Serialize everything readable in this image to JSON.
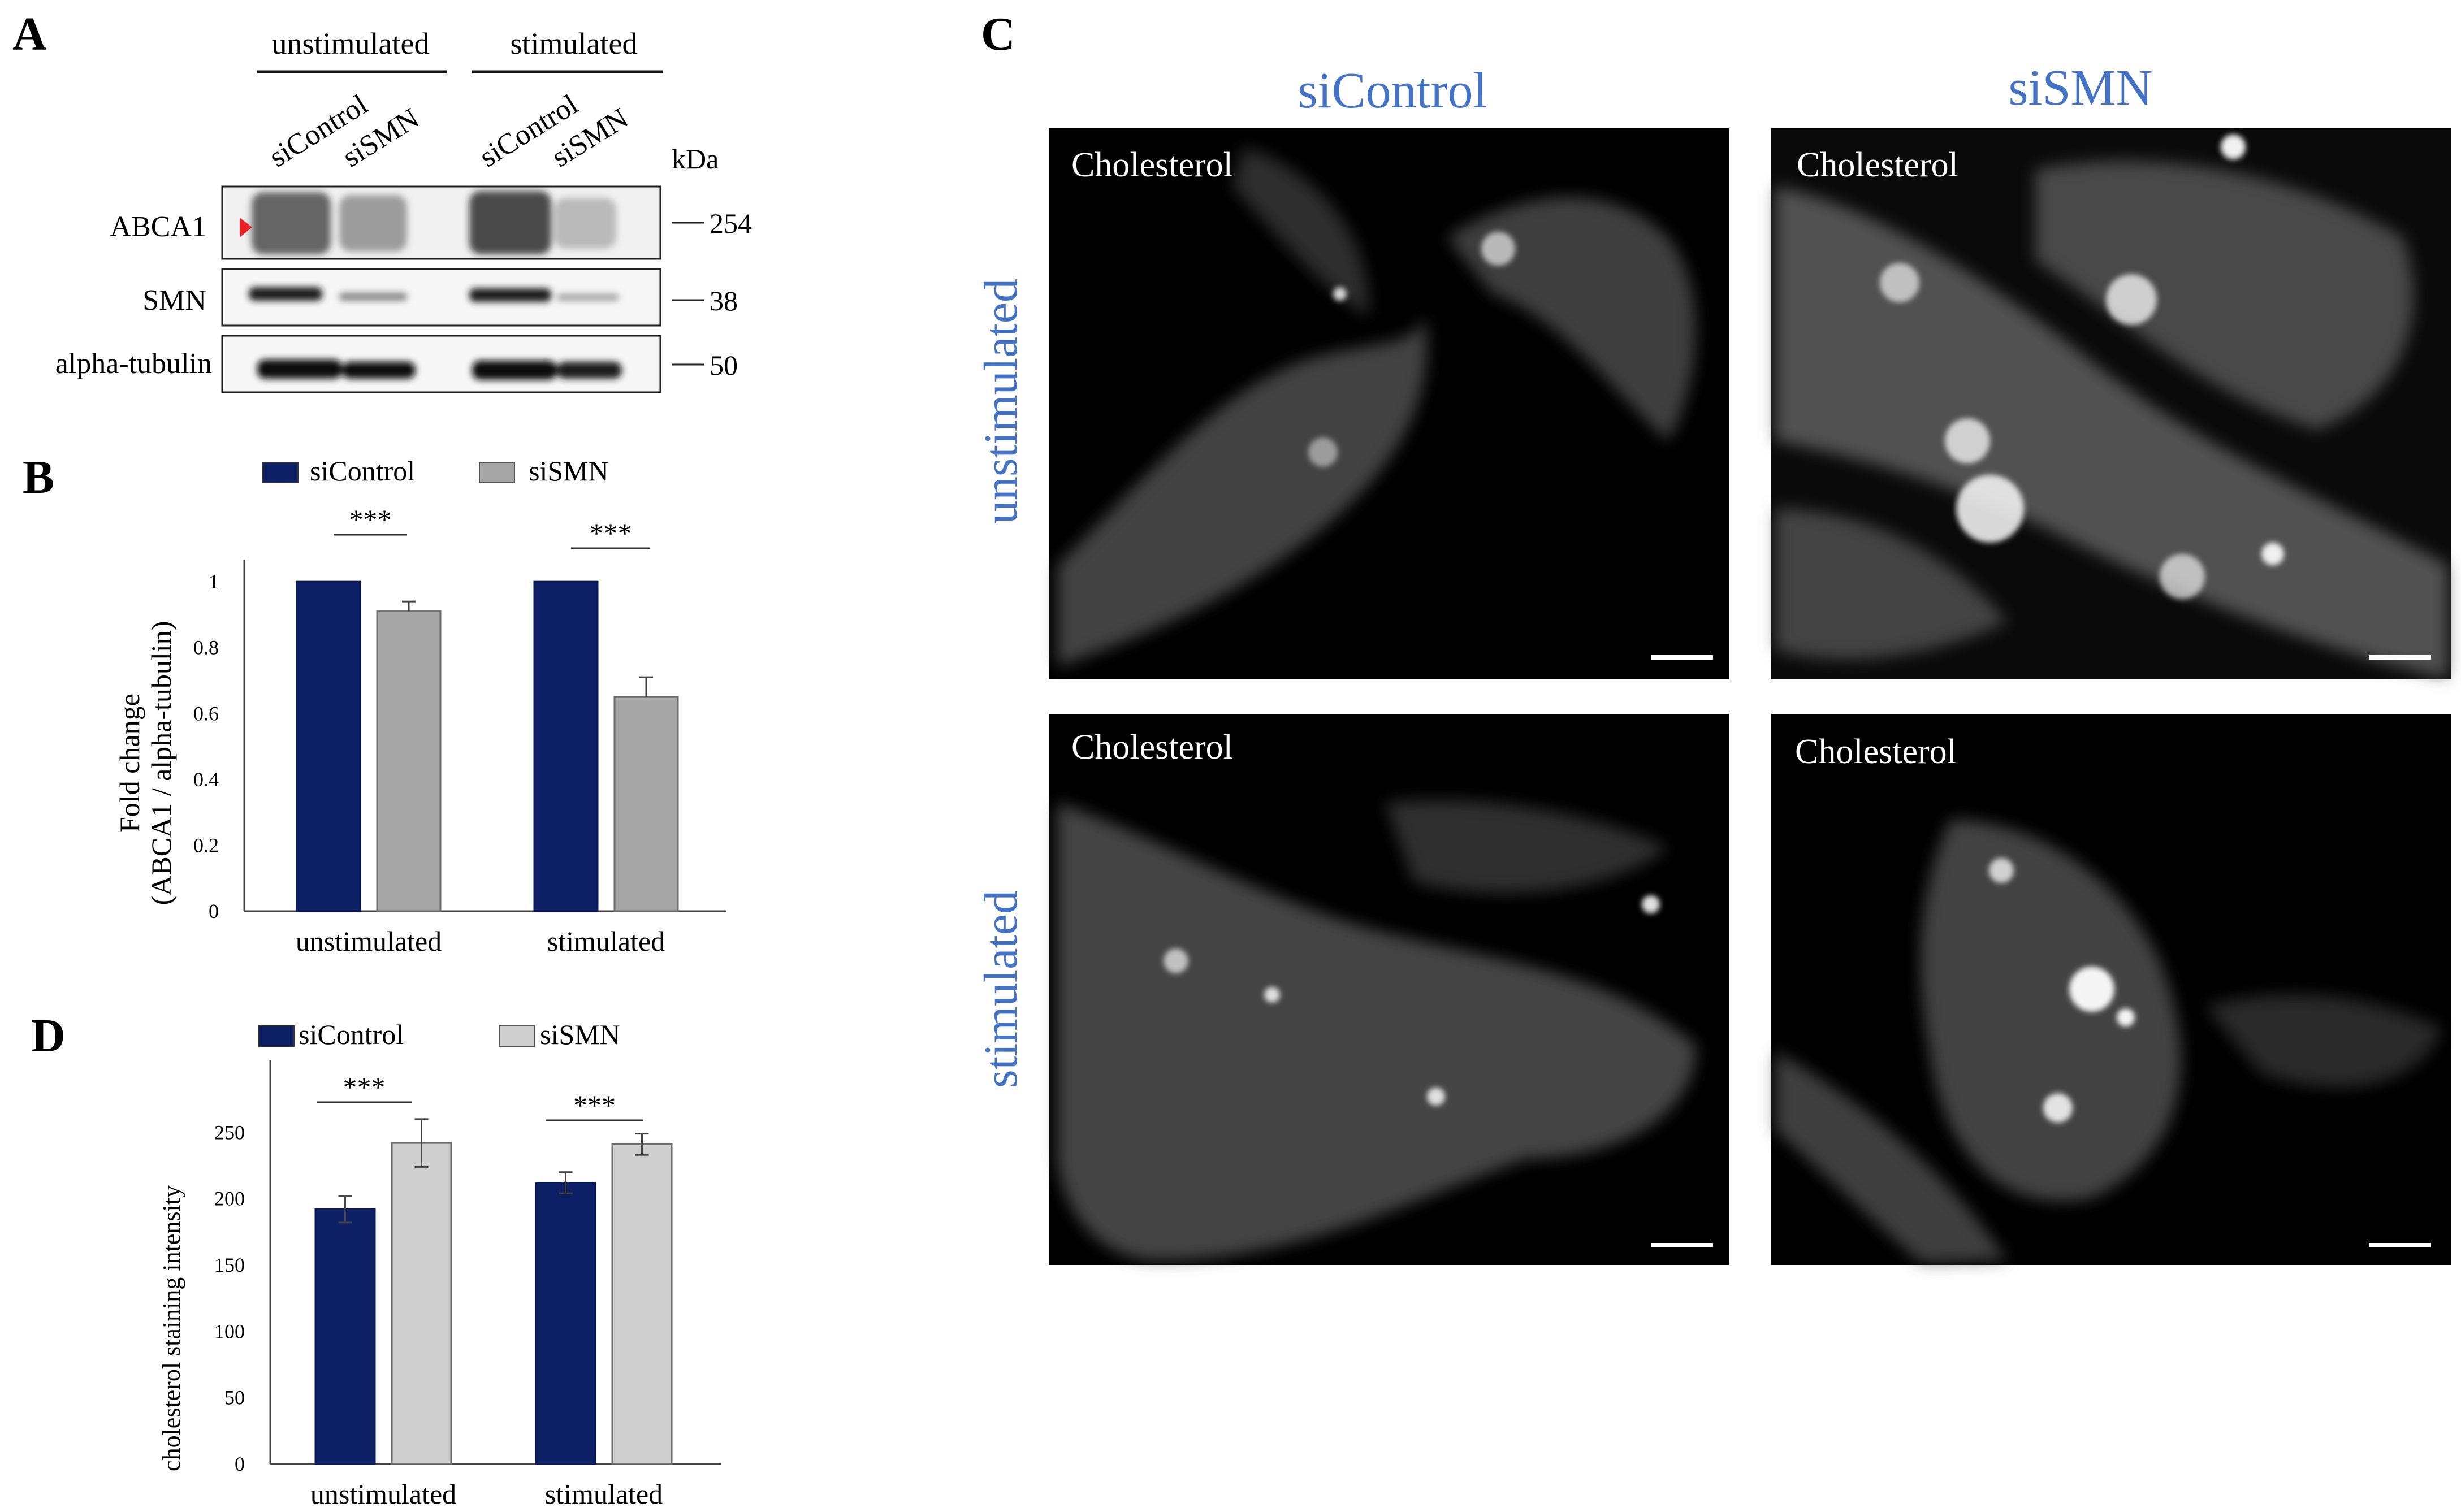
{
  "panels": {
    "a": {
      "letter": "A",
      "group_labels": [
        "unstimulated",
        "stimulated"
      ],
      "lane_labels": [
        "siControl",
        "siSMN",
        "siControl",
        "siSMN"
      ],
      "kda_label": "kDa",
      "rows": [
        {
          "label": "ABCA1",
          "kda": "254"
        },
        {
          "label": "SMN",
          "kda": "38"
        },
        {
          "label": "alpha-tubulin",
          "kda": "50"
        }
      ],
      "arrow_color": "#e8202a"
    },
    "b": {
      "letter": "B"
    },
    "c": {
      "letter": "C",
      "column_labels": [
        "siControl",
        "siSMN"
      ],
      "row_labels": [
        "unstimulated",
        "stimulated"
      ],
      "image_caption": "Cholesterol",
      "label_color": "#4472c4"
    },
    "d": {
      "letter": "D"
    }
  },
  "colors": {
    "siControl": "#0d2066",
    "siSMN_B": "#a6a6a6",
    "siSMN_D": "#cfcfcf"
  },
  "chart_data": [
    {
      "id": "B",
      "type": "bar",
      "categories": [
        "unstimulated",
        "stimulated"
      ],
      "series": [
        {
          "name": "siControl",
          "values": [
            1.0,
            1.0
          ]
        },
        {
          "name": "siSMN",
          "values": [
            0.91,
            0.65
          ],
          "errors": [
            0.03,
            0.06
          ]
        }
      ],
      "ylabel_lines": [
        "Fold change",
        "(ABCA1 / alpha-tubulin)"
      ],
      "yticks": [
        "0",
        "0.2",
        "0.4",
        "0.6",
        "0.8",
        "1"
      ],
      "ylim": [
        0,
        1.05
      ],
      "significance": [
        "***",
        "***"
      ],
      "legend": "top"
    },
    {
      "id": "D",
      "type": "bar",
      "categories": [
        "unstimulated",
        "stimulated"
      ],
      "series": [
        {
          "name": "siControl",
          "values": [
            192,
            212
          ],
          "errors": [
            10,
            8
          ]
        },
        {
          "name": "siSMN",
          "values": [
            242,
            241
          ],
          "errors": [
            18,
            8
          ]
        }
      ],
      "ylabel": "cholesterol staining intensity",
      "yticks": [
        "0",
        "50",
        "100",
        "150",
        "200",
        "250"
      ],
      "ylim": [
        0,
        300
      ],
      "significance": [
        "***",
        "***"
      ],
      "legend": "top"
    }
  ]
}
